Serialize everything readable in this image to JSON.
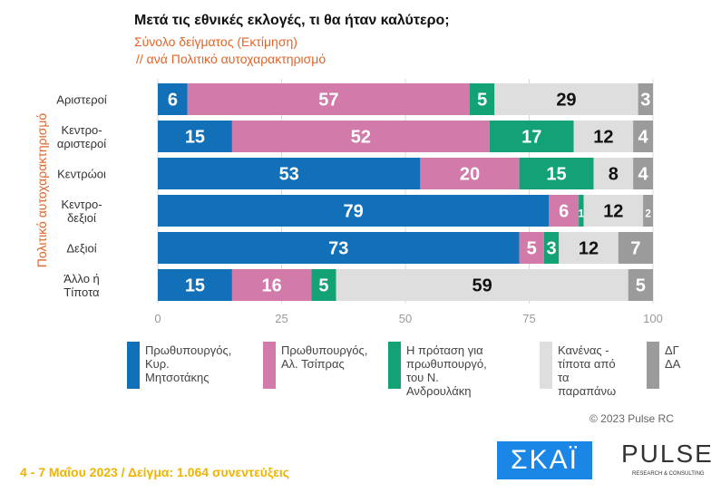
{
  "chart_data": {
    "type": "bar",
    "orientation": "horizontal",
    "stacked": true,
    "title": "Μετά τις εθνικές εκλογές, τι θα ήταν καλύτερο;",
    "subtitle": [
      "Σύνολο δείγματος  (Εκτίμηση)",
      "// ανά Πολιτικό αυτοχαρακτηρισμό"
    ],
    "ylabel": "Πολιτικό αυτοχαρακτηρισμό",
    "categories": [
      "Αριστεροί",
      "Κεντρο-\nαριστεροί",
      "Κεντρώοι",
      "Κεντρο-\nδεξιοί",
      "Δεξιοί",
      "Άλλο ή\nΤίποτα"
    ],
    "xlim": [
      0,
      100
    ],
    "xticks": [
      0,
      25,
      50,
      75,
      100
    ],
    "grid": true,
    "legend_position": "bottom",
    "series": [
      {
        "name": "Πρωθυπουργός,\nΚυρ. Μητσοτάκης",
        "color": "#1170b8",
        "label_color": "#ffffff",
        "values": [
          6,
          15,
          53,
          79,
          73,
          15
        ]
      },
      {
        "name": "Πρωθυπουργός,\nΑλ. Τσίπρας",
        "color": "#d27aa9",
        "label_color": "#ffffff",
        "values": [
          57,
          52,
          20,
          6,
          5,
          16
        ]
      },
      {
        "name": "Η πρόταση για\nπρωθυπουργό,\nτου Ν. Ανδρουλάκη",
        "color": "#13a275",
        "label_color": "#ffffff",
        "values": [
          5,
          17,
          15,
          1,
          3,
          5
        ]
      },
      {
        "name": "Κανένας -\nτίποτα από\nτα παραπάνω",
        "color": "#dedede",
        "label_color": "#111111",
        "values": [
          29,
          12,
          8,
          12,
          12,
          59
        ]
      },
      {
        "name": "ΔΓ\nΔΑ",
        "color": "#9b9b9b",
        "label_color": "#ffffff",
        "values": [
          3,
          4,
          4,
          2,
          7,
          5
        ]
      }
    ]
  },
  "footer": {
    "copyright": "© 2023 Pulse RC",
    "fieldwork": "4 - 7  Μαΐου  2023  /  Δείγμα:  1.064 συνεντεύξεις",
    "logo_skai": "ΣΚΑΪ",
    "logo_pulse": "PULSE",
    "logo_pulse_sub": "RESEARCH & CONSULTING"
  }
}
